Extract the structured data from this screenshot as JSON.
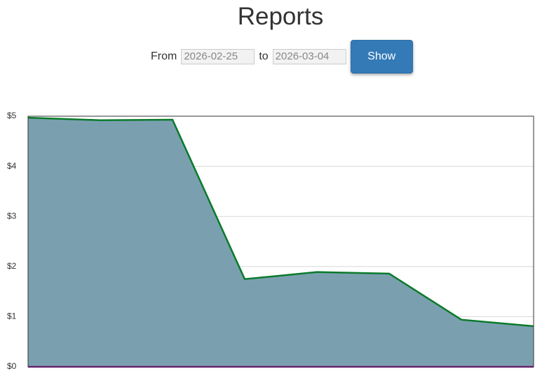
{
  "header": {
    "title": "Reports"
  },
  "form": {
    "from_label": "From",
    "from_value": "2026-02-25",
    "to_label": "to",
    "to_value": "2026-03-04",
    "button": "Show"
  },
  "chart_data": {
    "type": "area",
    "categories": [
      null,
      null,
      null,
      null,
      null,
      null,
      null,
      null
    ],
    "series": [
      {
        "color": "#0a7a2a",
        "fill": "#7aa0b0",
        "values": [
          4.97,
          4.92,
          4.93,
          1.75,
          1.89,
          1.86,
          0.94,
          0.81
        ]
      },
      {
        "color": "#8a1a9a",
        "values": [
          0,
          0,
          0,
          0,
          0,
          0,
          0,
          0
        ]
      }
    ],
    "ylim": [
      0,
      5
    ],
    "yticks": [
      {
        "value": 0,
        "label": "$0"
      },
      {
        "value": 1,
        "label": "$1"
      },
      {
        "value": 2,
        "label": "$2"
      },
      {
        "value": 3,
        "label": "$3"
      },
      {
        "value": 4,
        "label": "$4"
      },
      {
        "value": 5,
        "label": "$5"
      }
    ],
    "grid": true
  }
}
